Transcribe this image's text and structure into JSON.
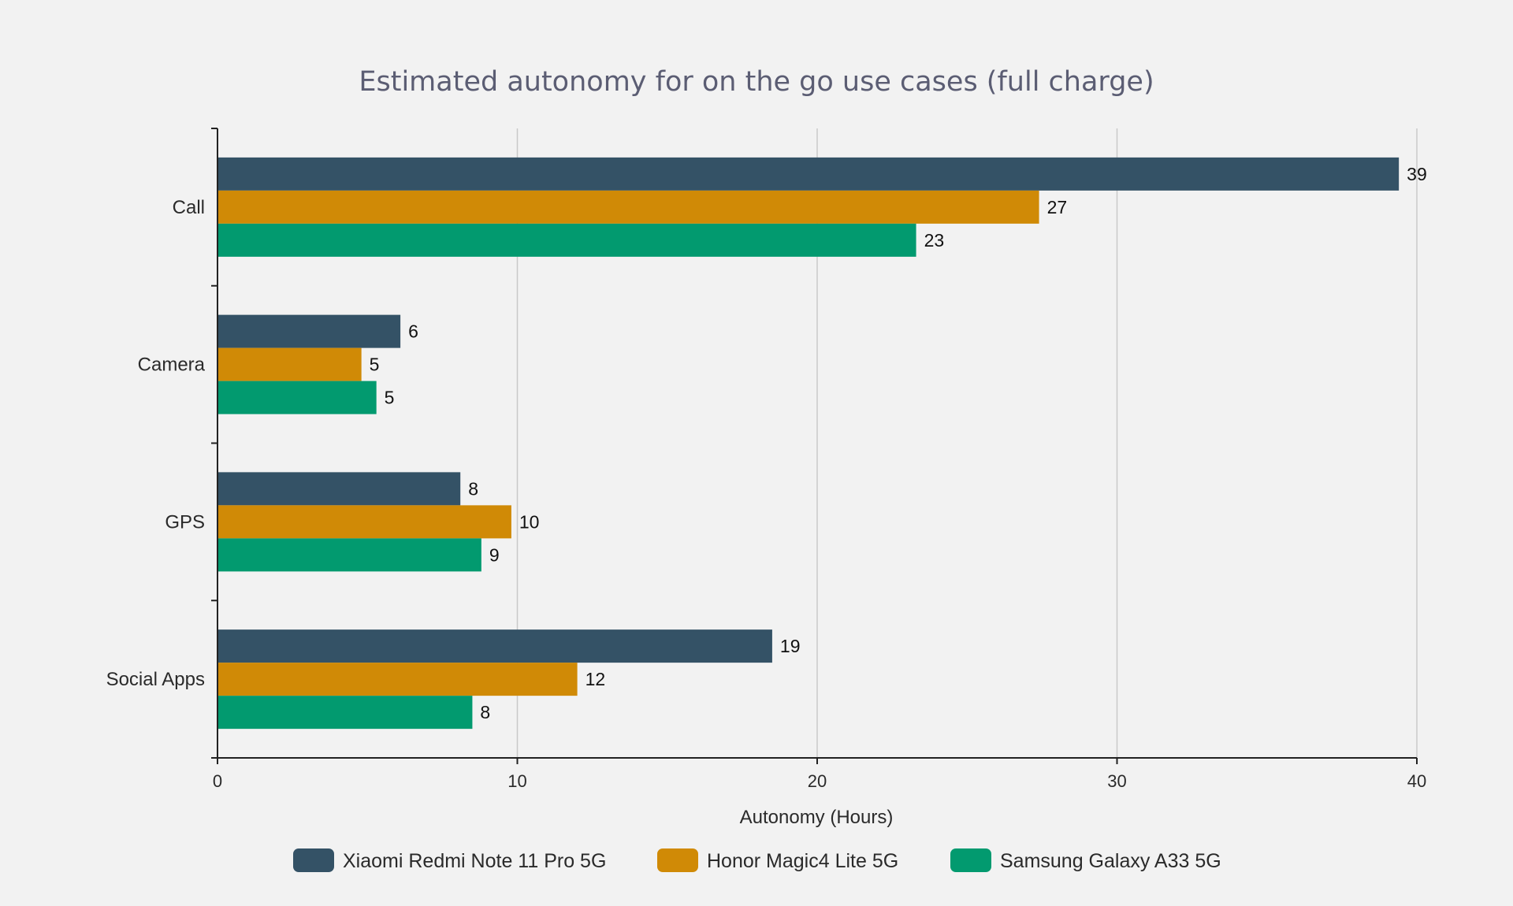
{
  "chart_data": {
    "type": "bar",
    "orientation": "horizontal",
    "title": "Estimated autonomy for on the go use cases (full charge)",
    "xlabel": "Autonomy (Hours)",
    "ylabel": "",
    "xlim": [
      0,
      40
    ],
    "xticks": [
      0,
      10,
      20,
      30,
      40
    ],
    "grid": "vertical",
    "legend_position": "bottom",
    "categories": [
      "Call",
      "Camera",
      "GPS",
      "Social Apps"
    ],
    "series": [
      {
        "name": "Xiaomi Redmi Note 11 Pro 5G",
        "color": "#345266",
        "values": [
          39.4,
          6.1,
          8.1,
          18.5
        ],
        "labels": [
          "39",
          "6",
          "8",
          "19"
        ]
      },
      {
        "name": "Honor Magic4 Lite 5G",
        "color": "#d08a06",
        "values": [
          27.4,
          4.8,
          9.8,
          12.0
        ],
        "labels": [
          "27",
          "5",
          "10",
          "12"
        ]
      },
      {
        "name": "Samsung Galaxy A33 5G",
        "color": "#029a6f",
        "values": [
          23.3,
          5.3,
          8.8,
          8.5
        ],
        "labels": [
          "23",
          "5",
          "9",
          "8"
        ]
      }
    ]
  }
}
